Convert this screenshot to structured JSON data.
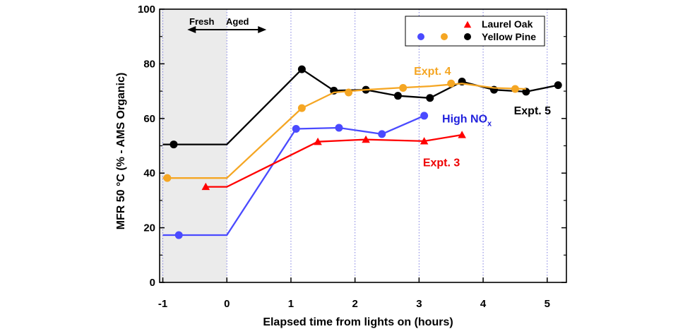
{
  "chart_data": {
    "type": "line",
    "xlabel": "Elapsed time from lights on (hours)",
    "ylabel": "MFR 50 °C (% - AMS Organic)",
    "xlim": [
      -1.05,
      5.3
    ],
    "ylim": [
      0,
      100
    ],
    "xticks": [
      -1,
      0,
      1,
      2,
      3,
      4,
      5
    ],
    "yticks": [
      0,
      20,
      40,
      60,
      80,
      100
    ],
    "shaded_region": {
      "x": [
        -1.05,
        0
      ],
      "color": "#ebebeb"
    },
    "phase_labels": {
      "left": "Fresh",
      "right": "Aged"
    },
    "legend": {
      "position": "top-right",
      "rows": [
        {
          "label": "Laurel Oak",
          "markers": [
            {
              "shape": "triangle",
              "color": "#ff0000"
            }
          ]
        },
        {
          "label": "Yellow Pine",
          "markers": [
            {
              "shape": "circle",
              "color": "#4a4aff"
            },
            {
              "shape": "circle",
              "color": "#f5a623"
            },
            {
              "shape": "circle",
              "color": "#000000"
            }
          ]
        }
      ]
    },
    "series": [
      {
        "color": "#000000",
        "marker": "circle",
        "line_x": [
          -1,
          0,
          1.17,
          1.67,
          2.17,
          2.67,
          3.17,
          3.67,
          4.17,
          4.67,
          5.17
        ],
        "line_y": [
          50.5,
          50.5,
          78,
          70.2,
          70.5,
          68.3,
          67.5,
          73.5,
          70.5,
          69.8,
          72.2
        ],
        "points_x": [
          -0.83,
          1.17,
          1.67,
          2.17,
          2.67,
          3.17,
          3.67,
          4.17,
          4.67,
          5.17
        ],
        "points_y": [
          50.5,
          78,
          70.2,
          70.5,
          68.3,
          67.5,
          73.5,
          70.5,
          69.8,
          72.2
        ]
      },
      {
        "color": "#f5a623",
        "marker": "circle",
        "line_x": [
          -1,
          0,
          1.17,
          1.67,
          2.17,
          2.67,
          3.17,
          3.67,
          4.17,
          4.67
        ],
        "line_y": [
          38.2,
          38.2,
          63.8,
          69.5,
          70.5,
          71.2,
          71.8,
          72.8,
          71.2,
          70.8
        ],
        "points_x": [
          -0.93,
          1.17,
          1.9,
          2.75,
          3.5,
          4.5
        ],
        "points_y": [
          38.2,
          63.8,
          69.5,
          71.2,
          72.8,
          70.8
        ]
      },
      {
        "color": "#4a4aff",
        "marker": "circle",
        "line_x": [
          -1,
          0,
          1.08,
          1.75,
          2.42,
          3.08
        ],
        "line_y": [
          17.3,
          17.3,
          56.2,
          56.6,
          54.3,
          61
        ],
        "points_x": [
          -0.75,
          1.08,
          1.75,
          2.42,
          3.08
        ],
        "points_y": [
          17.3,
          56.2,
          56.6,
          54.3,
          61
        ]
      },
      {
        "color": "#ff0000",
        "marker": "triangle",
        "line_x": [
          -0.33,
          0,
          1.42,
          2.17,
          3.08,
          3.67
        ],
        "line_y": [
          35,
          35,
          51.5,
          52.3,
          51.7,
          54
        ],
        "points_x": [
          -0.33,
          1.42,
          2.17,
          3.08,
          3.67
        ],
        "points_y": [
          35,
          51.5,
          52.3,
          51.7,
          54
        ]
      }
    ],
    "annotations": [
      {
        "text": "Expt. 4",
        "x": 2.92,
        "y": 76,
        "color": "#f5a623"
      },
      {
        "text": "Expt. 5",
        "x": 4.48,
        "y": 61.5,
        "color": "#000000"
      },
      {
        "text": "High NO",
        "sub": "x",
        "x": 3.36,
        "y": 58.5,
        "color": "#2222dd"
      },
      {
        "text": "Expt. 3",
        "x": 3.06,
        "y": 42.5,
        "color": "#ee0000"
      }
    ]
  }
}
